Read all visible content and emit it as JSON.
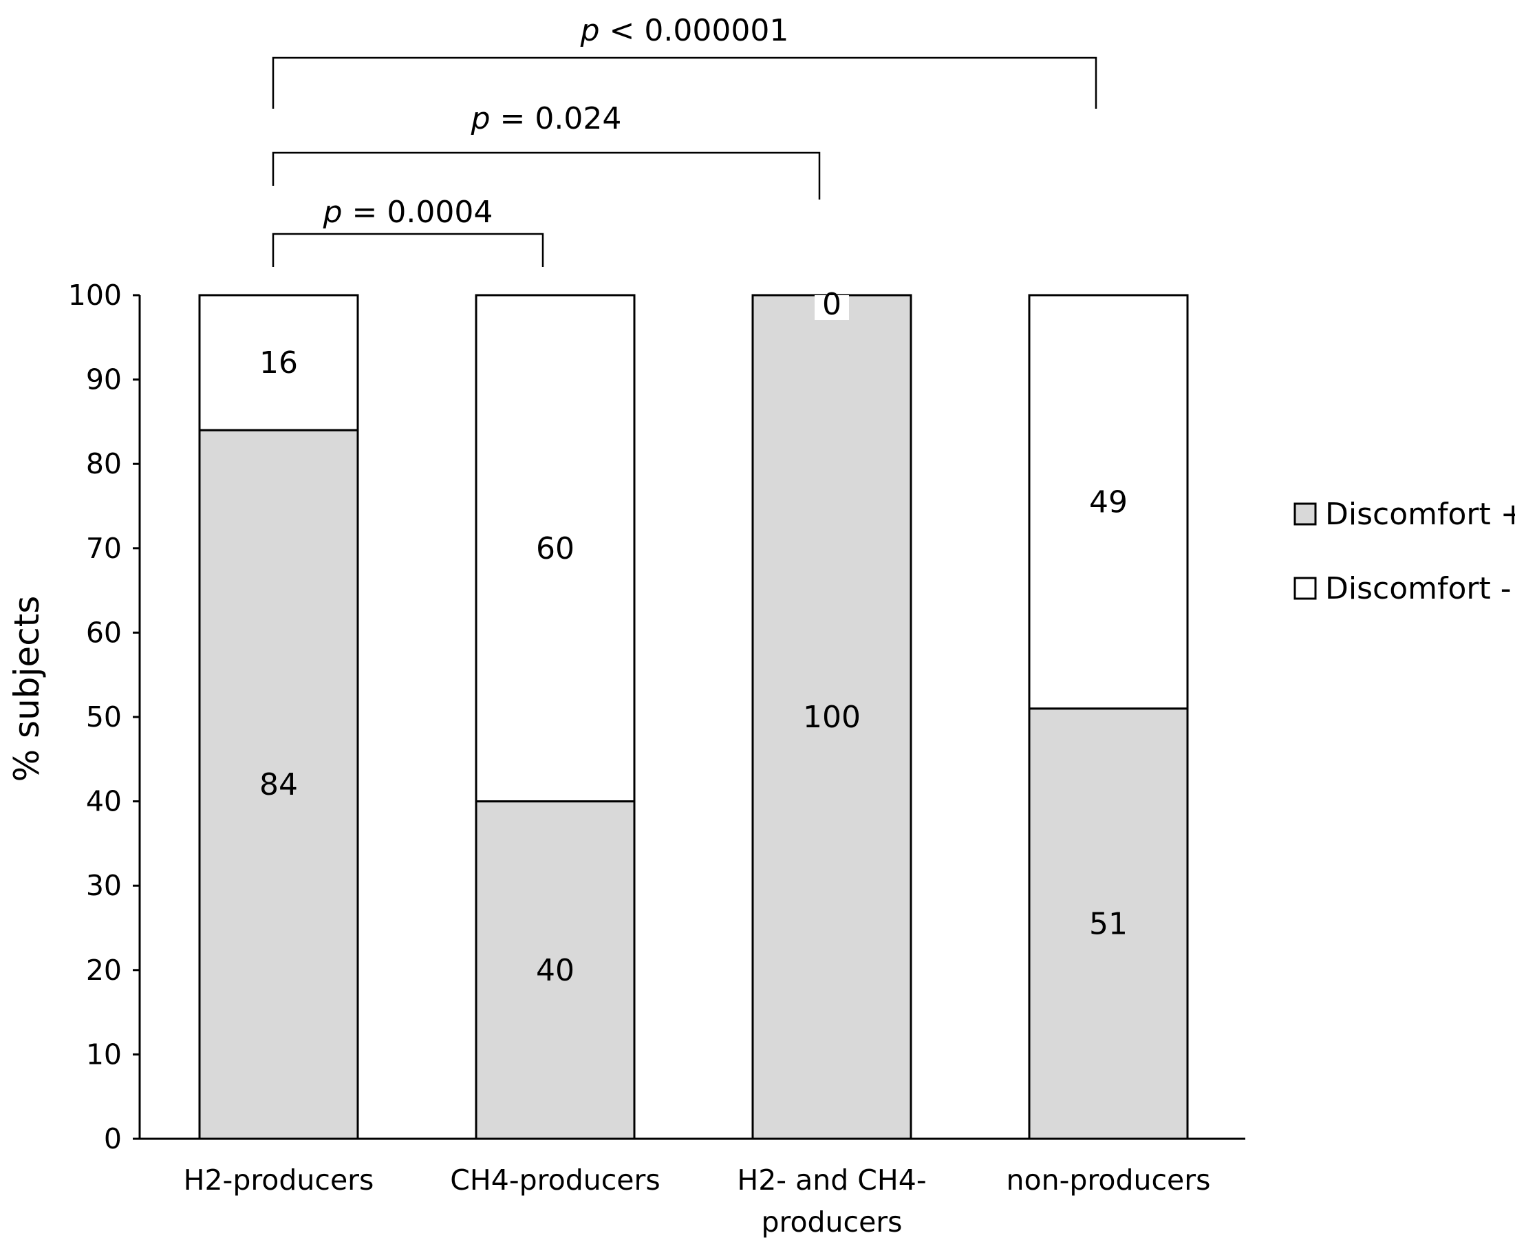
{
  "chart_data": {
    "type": "bar",
    "stacked": true,
    "percent": true,
    "ylabel": "% subjects",
    "xlabel": "",
    "ylim": [
      0,
      100
    ],
    "yticks": [
      0,
      10,
      20,
      30,
      40,
      50,
      60,
      70,
      80,
      90,
      100
    ],
    "grid": false,
    "legend_position": "right",
    "categories": [
      [
        "H2-producers"
      ],
      [
        "CH4-producers"
      ],
      [
        "H2- and CH4-",
        "producers"
      ],
      [
        "non-producers"
      ]
    ],
    "series": [
      {
        "name": "Discomfort +",
        "color": "#d9d9d9",
        "values": [
          84,
          40,
          100,
          51
        ]
      },
      {
        "name": "Discomfort -",
        "color": "#ffffff",
        "values": [
          16,
          60,
          0,
          49
        ]
      }
    ],
    "significance": [
      {
        "from": 0,
        "to": 1,
        "italic": "p",
        "text": " = 0.0004"
      },
      {
        "from": 0,
        "to": 2,
        "italic": "p",
        "text": " = 0.024"
      },
      {
        "from": 0,
        "to": 3,
        "italic": "p",
        "text": " < 0.000001"
      }
    ]
  }
}
